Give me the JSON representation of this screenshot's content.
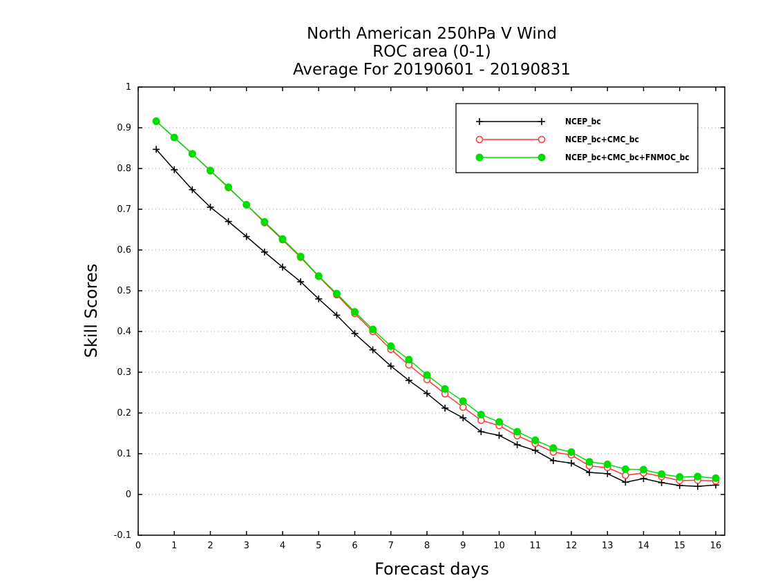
{
  "chart_data": {
    "type": "line",
    "title_lines": [
      "North American 250hPa V Wind",
      "ROC area (0-1)",
      "Average For 20190601 - 20190831"
    ],
    "xlabel": "Forecast days",
    "ylabel": "Skill Scores",
    "xlim": [
      0,
      16.25
    ],
    "ylim": [
      -0.1,
      1
    ],
    "xticks": [
      0,
      1,
      2,
      3,
      4,
      5,
      6,
      7,
      8,
      9,
      10,
      11,
      12,
      13,
      14,
      15,
      16
    ],
    "yticks": [
      -0.1,
      0,
      0.1,
      0.2,
      0.3,
      0.4,
      0.5,
      0.6,
      0.7,
      0.8,
      0.9,
      1
    ],
    "ytick_labels": [
      "-0.1",
      "0",
      "0.1",
      "0.2",
      "0.3",
      "0.4",
      "0.5",
      "0.6",
      "0.7",
      "0.8",
      "0.9",
      "1"
    ],
    "grid": "horizontal dotted",
    "legend_position": "top-right",
    "x": [
      0.5,
      1,
      1.5,
      2,
      2.5,
      3,
      3.5,
      4,
      4.5,
      5,
      5.5,
      6,
      6.5,
      7,
      7.5,
      8,
      8.5,
      9,
      9.5,
      10,
      10.5,
      11,
      11.5,
      12,
      12.5,
      13,
      13.5,
      14,
      14.5,
      15,
      15.5,
      16
    ],
    "series": [
      {
        "name": "NCEP_bc",
        "color": "#000000",
        "marker": "plus",
        "values": [
          0.847,
          0.797,
          0.748,
          0.705,
          0.67,
          0.633,
          0.595,
          0.558,
          0.522,
          0.48,
          0.44,
          0.395,
          0.355,
          0.315,
          0.28,
          0.248,
          0.212,
          0.188,
          0.154,
          0.145,
          0.122,
          0.108,
          0.083,
          0.077,
          0.054,
          0.051,
          0.03,
          0.039,
          0.029,
          0.022,
          0.02,
          0.023
        ]
      },
      {
        "name": "NCEP_bc+CMC_bc",
        "color": "#ff3333",
        "marker": "open-circle",
        "values": [
          0.916,
          0.876,
          0.836,
          0.794,
          0.753,
          0.711,
          0.667,
          0.625,
          0.582,
          0.535,
          0.49,
          0.444,
          0.4,
          0.356,
          0.318,
          0.282,
          0.247,
          0.214,
          0.182,
          0.169,
          0.144,
          0.125,
          0.104,
          0.097,
          0.07,
          0.066,
          0.047,
          0.053,
          0.044,
          0.034,
          0.035,
          0.033
        ]
      },
      {
        "name": "NCEP_bc+CMC_bc+FNMOC_bc",
        "color": "#00dd00",
        "marker": "filled-circle",
        "values": [
          0.916,
          0.876,
          0.836,
          0.795,
          0.754,
          0.711,
          0.669,
          0.627,
          0.584,
          0.536,
          0.493,
          0.448,
          0.405,
          0.364,
          0.331,
          0.293,
          0.259,
          0.229,
          0.196,
          0.178,
          0.154,
          0.133,
          0.114,
          0.104,
          0.08,
          0.074,
          0.062,
          0.061,
          0.05,
          0.043,
          0.044,
          0.04
        ]
      }
    ]
  }
}
